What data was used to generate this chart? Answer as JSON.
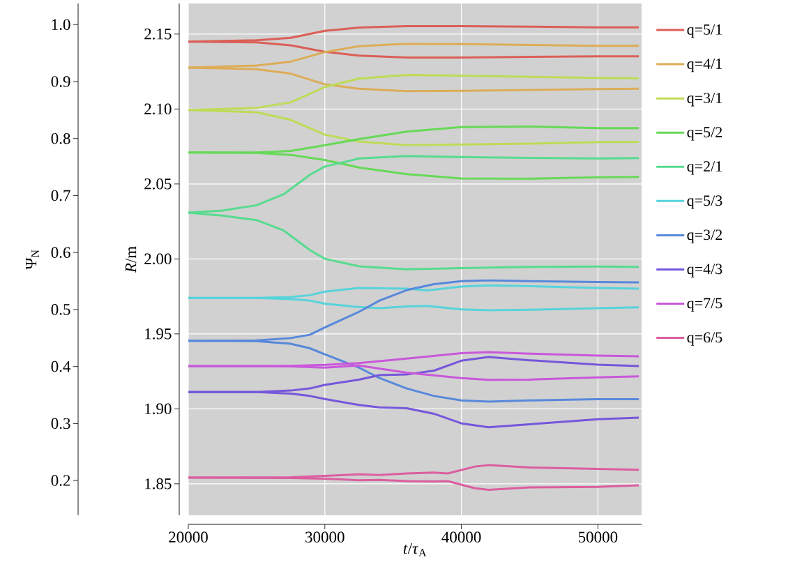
{
  "chart_data": {
    "type": "line",
    "xlabel": "*t*/*τ*$_{A}$",
    "ylabel": "*R*/m",
    "y2label": "Ψ$_{N}$",
    "x": [
      20000,
      25000,
      27500,
      30000,
      32500,
      36000,
      40000,
      45000,
      50000,
      53000
    ],
    "xlim": [
      20000,
      53200
    ],
    "xticks": [
      20000,
      30000,
      40000,
      50000
    ],
    "ylim": [
      1.829,
      2.1704
    ],
    "yticks": [
      1.85,
      {
        "value": 1.9,
        "label": "1.90"
      },
      1.95,
      {
        "value": 2.0,
        "label": "2.00"
      },
      2.05,
      {
        "value": 2.1,
        "label": "2.10"
      },
      2.15
    ],
    "y2lim": [
      0.139,
      1.037
    ],
    "y2ticks": [
      {
        "value": 1.0,
        "label": "1.0"
      },
      0.9,
      0.8,
      0.7,
      0.6,
      0.5,
      0.4,
      0.3,
      0.2
    ],
    "grid": true,
    "legend": "right",
    "series": [
      {
        "name": "q=5/1",
        "color": "#db5f57",
        "values": [
          2.1449,
          2.1459,
          2.1475,
          2.1521,
          2.1543,
          2.1553,
          2.1553,
          2.1549,
          2.1545,
          2.1545
        ]
      },
      {
        "color": "#db5f57",
        "values": [
          2.1449,
          2.1445,
          2.1425,
          2.1382,
          2.1356,
          2.1344,
          2.1344,
          2.1348,
          2.1352,
          2.1352
        ]
      },
      {
        "name": "q=4/1",
        "color": "#dcac57",
        "values": [
          2.1276,
          2.129,
          2.1316,
          2.138,
          2.1419,
          2.1435,
          2.1433,
          2.1427,
          2.1421,
          2.1421
        ]
      },
      {
        "color": "#dcac57",
        "values": [
          2.1276,
          2.1266,
          2.1236,
          2.1165,
          2.1135,
          2.1119,
          2.1121,
          2.1127,
          2.1133,
          2.1135
        ]
      },
      {
        "name": "q=3/1",
        "color": "#bedb57",
        "values": [
          2.0994,
          2.1008,
          2.1044,
          2.1147,
          2.1203,
          2.1227,
          2.1223,
          2.1215,
          2.1207,
          2.1205
        ]
      },
      {
        "color": "#bedb57",
        "values": [
          2.0994,
          2.0978,
          2.0928,
          2.0829,
          2.0783,
          2.0759,
          2.0763,
          2.0769,
          2.0779,
          2.0781
        ]
      },
      {
        "name": "q=5/2",
        "color": "#66d957",
        "values": [
          2.071,
          2.071,
          2.072,
          2.0759,
          2.0799,
          2.0849,
          2.0879,
          2.0883,
          2.0873,
          2.0873
        ]
      },
      {
        "color": "#66d957",
        "values": [
          2.071,
          2.0708,
          2.0694,
          2.066,
          2.061,
          2.0566,
          2.0537,
          2.0535,
          2.0545,
          2.0547
        ]
      },
      {
        "name": "q=2/1",
        "color": "#57db8f",
        "x": [
          20000,
          22500,
          25000,
          27000,
          28900,
          30000,
          32500,
          36000,
          40000,
          45000,
          50000,
          53000
        ],
        "values": [
          2.0309,
          2.0323,
          2.0358,
          2.0432,
          2.0561,
          2.0616,
          2.067,
          2.0686,
          2.068,
          2.0674,
          2.067,
          2.0672
        ]
      },
      {
        "color": "#57db8f",
        "x": [
          20000,
          22500,
          25000,
          27000,
          28900,
          30000,
          32500,
          36000,
          40000,
          45000,
          50000,
          53000
        ],
        "values": [
          2.0309,
          2.0289,
          2.0259,
          2.0189,
          2.006,
          2.0001,
          1.9951,
          1.9931,
          1.9939,
          1.9947,
          1.9949,
          1.9947
        ]
      },
      {
        "name": "q=5/3",
        "color": "#57d3db",
        "x": [
          20000,
          25000,
          27500,
          28900,
          30000,
          32500,
          36000,
          37500,
          40000,
          42000,
          45000,
          50000,
          53000
        ],
        "values": [
          1.974,
          1.974,
          1.9746,
          1.9758,
          1.9782,
          1.9806,
          1.9802,
          1.979,
          1.9816,
          1.9824,
          1.9818,
          1.9806,
          1.9802
        ]
      },
      {
        "color": "#57d3db",
        "x": [
          20000,
          25000,
          27500,
          28900,
          30000,
          32500,
          34000,
          36000,
          37500,
          40000,
          42000,
          45000,
          50000,
          53000
        ],
        "values": [
          1.974,
          1.974,
          1.9732,
          1.9722,
          1.9702,
          1.9679,
          1.9671,
          1.9683,
          1.9687,
          1.9663,
          1.9657,
          1.9661,
          1.9671,
          1.9677
        ]
      },
      {
        "name": "q=3/2",
        "color": "#5788db",
        "x": [
          20000,
          25000,
          27500,
          28900,
          30000,
          32500,
          34000,
          36000,
          38000,
          40000,
          42000,
          45000,
          50000,
          53000
        ],
        "values": [
          1.9454,
          1.9456,
          1.9472,
          1.9494,
          1.9543,
          1.9647,
          1.9722,
          1.9792,
          1.9832,
          1.9852,
          1.9857,
          1.9852,
          1.9846,
          1.9844
        ]
      },
      {
        "color": "#5788db",
        "x": [
          20000,
          25000,
          27500,
          28900,
          30000,
          32500,
          34000,
          36000,
          38000,
          40000,
          42000,
          45000,
          50000,
          53000
        ],
        "values": [
          1.9454,
          1.9452,
          1.9434,
          1.9404,
          1.9364,
          1.9275,
          1.9206,
          1.9136,
          1.9086,
          1.9056,
          1.9048,
          1.9056,
          1.9064,
          1.9064
        ]
      },
      {
        "name": "q=4/3",
        "color": "#7557db",
        "x": [
          20000,
          25000,
          27500,
          28900,
          30000,
          32500,
          34000,
          36000,
          38000,
          40000,
          42000,
          45000,
          50000,
          53000
        ],
        "values": [
          1.9112,
          1.9112,
          1.9122,
          1.9136,
          1.916,
          1.9195,
          1.9225,
          1.9229,
          1.9255,
          1.9321,
          1.9346,
          1.9324,
          1.9295,
          1.9285
        ]
      },
      {
        "color": "#7557db",
        "x": [
          20000,
          25000,
          27500,
          28900,
          30000,
          32500,
          34000,
          36000,
          38000,
          40000,
          42000,
          45000,
          50000,
          53000
        ],
        "values": [
          1.9112,
          1.9112,
          1.9102,
          1.9086,
          1.9066,
          1.9026,
          1.901,
          1.9004,
          1.8967,
          1.8903,
          1.8877,
          1.8897,
          1.8931,
          1.8941
        ]
      },
      {
        "name": "q=7/5",
        "color": "#c957db",
        "x": [
          20000,
          25000,
          27500,
          30000,
          32500,
          36000,
          40000,
          42000,
          45000,
          50000,
          53000
        ],
        "values": [
          1.9285,
          1.9285,
          1.9287,
          1.9293,
          1.9305,
          1.9335,
          1.9371,
          1.9378,
          1.9368,
          1.9355,
          1.9351
        ]
      },
      {
        "color": "#c957db",
        "x": [
          20000,
          25000,
          27500,
          30000,
          32500,
          36000,
          40000,
          42000,
          45000,
          50000,
          53000
        ],
        "values": [
          1.9285,
          1.9285,
          1.9283,
          1.9275,
          1.9289,
          1.9241,
          1.9205,
          1.9193,
          1.9195,
          1.921,
          1.9217
        ]
      },
      {
        "name": "q=6/5",
        "color": "#db5ea0",
        "x": [
          20000,
          27500,
          30000,
          32500,
          34000,
          36000,
          38000,
          39000,
          41000,
          42000,
          45000,
          50000,
          53000
        ],
        "values": [
          1.8541,
          1.8543,
          1.8553,
          1.8563,
          1.8559,
          1.8569,
          1.8575,
          1.8569,
          1.8615,
          1.8625,
          1.8609,
          1.8599,
          1.8593
        ]
      },
      {
        "color": "#db5ea0",
        "x": [
          20000,
          27500,
          30000,
          32500,
          34000,
          36000,
          38000,
          39000,
          41000,
          42000,
          45000,
          50000,
          53000
        ],
        "values": [
          1.8541,
          1.8539,
          1.8534,
          1.8524,
          1.8526,
          1.8518,
          1.8516,
          1.8518,
          1.847,
          1.846,
          1.8476,
          1.848,
          1.849
        ]
      }
    ]
  }
}
